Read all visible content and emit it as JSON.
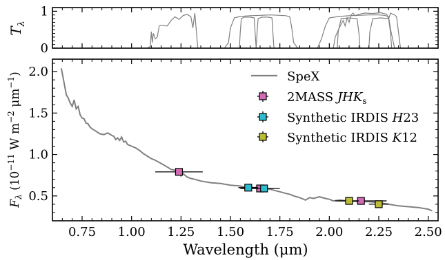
{
  "chart_data": [
    {
      "type": "line",
      "panel": "transmission",
      "ylabel": "T",
      "ylabel_sub": "λ",
      "xlim": [
        0.6,
        2.55
      ],
      "ylim": [
        0,
        1.1
      ],
      "yticks": [
        0,
        1
      ],
      "series": [
        {
          "color": "#808080",
          "x": [
            1.08,
            1.095,
            1.1,
            1.105,
            1.11,
            1.12,
            1.13,
            1.14,
            1.15,
            1.18,
            1.2,
            1.22,
            1.24,
            1.26,
            1.28,
            1.3,
            1.31,
            1.32,
            1.33,
            1.335
          ],
          "y": [
            0.0,
            0.05,
            0.45,
            0.15,
            0.4,
            0.25,
            0.3,
            0.6,
            0.62,
            0.6,
            0.75,
            0.85,
            0.78,
            0.88,
            0.92,
            0.85,
            0.55,
            0.95,
            0.3,
            0.0
          ]
        },
        {
          "color": "#808080",
          "x": [
            1.47,
            1.49,
            1.5,
            1.52,
            1.55,
            1.6,
            1.65,
            1.7,
            1.75,
            1.78,
            1.8,
            1.81,
            1.82,
            1.84
          ],
          "y": [
            0.0,
            0.15,
            0.55,
            0.82,
            0.86,
            0.88,
            0.89,
            0.9,
            0.89,
            0.88,
            0.85,
            0.55,
            0.15,
            0.0
          ]
        },
        {
          "color": "#808080",
          "x": [
            1.545,
            1.55,
            1.555,
            1.57,
            1.6,
            1.62,
            1.625,
            1.63
          ],
          "y": [
            0.0,
            0.45,
            0.8,
            0.84,
            0.84,
            0.82,
            0.4,
            0.0
          ]
        },
        {
          "color": "#808080",
          "x": [
            1.63,
            1.635,
            1.64,
            1.66,
            1.69,
            1.71,
            1.715,
            1.72
          ],
          "y": [
            0.0,
            0.45,
            0.8,
            0.84,
            0.84,
            0.82,
            0.4,
            0.0
          ]
        },
        {
          "color": "#808080",
          "x": [
            1.94,
            1.96,
            1.98,
            2.0,
            2.05,
            2.1,
            2.15,
            2.2,
            2.25,
            2.28,
            2.3,
            2.31,
            2.33
          ],
          "y": [
            0.0,
            0.25,
            0.6,
            0.82,
            0.86,
            0.88,
            0.89,
            0.9,
            0.9,
            0.89,
            0.85,
            0.5,
            0.0
          ]
        },
        {
          "color": "#808080",
          "x": [
            2.02,
            2.03,
            2.05,
            2.07,
            2.08,
            2.09,
            2.1,
            2.11,
            2.12,
            2.13,
            2.15,
            2.18,
            2.22,
            2.26,
            2.29,
            2.3,
            2.31,
            2.32,
            2.33,
            2.34,
            2.36
          ],
          "y": [
            0.0,
            0.3,
            0.55,
            0.75,
            0.6,
            0.82,
            0.7,
            0.9,
            0.95,
            0.88,
            0.92,
            0.95,
            0.94,
            0.96,
            0.92,
            0.8,
            0.95,
            0.92,
            0.9,
            0.85,
            0.0
          ]
        },
        {
          "color": "#808080",
          "x": [
            2.04,
            2.045,
            2.06,
            2.1,
            2.14,
            2.15,
            2.155
          ],
          "y": [
            0.0,
            0.45,
            0.8,
            0.82,
            0.8,
            0.4,
            0.0
          ]
        },
        {
          "color": "#808080",
          "x": [
            2.2,
            2.205,
            2.22,
            2.26,
            2.3,
            2.31,
            2.315
          ],
          "y": [
            0.0,
            0.45,
            0.8,
            0.82,
            0.8,
            0.4,
            0.0
          ]
        }
      ]
    },
    {
      "type": "scatter",
      "panel": "spectrum",
      "xlabel": "Wavelength (μm)",
      "ylabel": "F",
      "ylabel_sub": "λ",
      "ylabel_rest": " (10",
      "ylabel_exp1": "−11",
      "ylabel_mid": " W m",
      "ylabel_exp2": "−2",
      "ylabel_mid2": " μm",
      "ylabel_exp3": "−1",
      "ylabel_end": ")",
      "xlim": [
        0.6,
        2.55
      ],
      "ylim": [
        0.2,
        2.15
      ],
      "xticks": [
        0.75,
        1.0,
        1.25,
        1.5,
        1.75,
        2.0,
        2.25,
        2.5
      ],
      "xtick_labels": [
        "0.75",
        "1.00",
        "1.25",
        "1.50",
        "1.75",
        "2.00",
        "2.25",
        "2.50"
      ],
      "yticks": [
        0.5,
        1.0,
        1.5,
        2.0
      ],
      "ytick_labels": [
        "0.5",
        "1.0",
        "1.5",
        "2.0"
      ],
      "legend_position": "upper-right",
      "line": {
        "name": "SpeX",
        "color": "#808080",
        "x": [
          0.645,
          0.66,
          0.67,
          0.68,
          0.69,
          0.7,
          0.71,
          0.72,
          0.73,
          0.74,
          0.75,
          0.76,
          0.77,
          0.78,
          0.79,
          0.8,
          0.82,
          0.84,
          0.86,
          0.88,
          0.9,
          0.91,
          0.92,
          0.93,
          0.94,
          0.95,
          0.96,
          0.97,
          0.98,
          1.0,
          1.02,
          1.04,
          1.06,
          1.08,
          1.1,
          1.12,
          1.15,
          1.18,
          1.2,
          1.22,
          1.24,
          1.25,
          1.26,
          1.28,
          1.3,
          1.32,
          1.35,
          1.4,
          1.45,
          1.5,
          1.55,
          1.58,
          1.6,
          1.62,
          1.65,
          1.68,
          1.7,
          1.75,
          1.78,
          1.8,
          1.82,
          1.85,
          1.88,
          1.9,
          1.92,
          1.95,
          1.98,
          2.0,
          2.02,
          2.05,
          2.1,
          2.15,
          2.2,
          2.25,
          2.3,
          2.35,
          2.4,
          2.45,
          2.5,
          2.52
        ],
        "y": [
          2.04,
          1.85,
          1.72,
          1.68,
          1.62,
          1.58,
          1.66,
          1.55,
          1.58,
          1.48,
          1.44,
          1.43,
          1.38,
          1.37,
          1.33,
          1.31,
          1.28,
          1.25,
          1.24,
          1.26,
          1.23,
          1.22,
          1.18,
          1.2,
          1.17,
          1.21,
          1.15,
          1.16,
          1.12,
          1.1,
          1.08,
          1.05,
          1.01,
          0.98,
          0.95,
          0.93,
          0.89,
          0.85,
          0.82,
          0.81,
          0.78,
          0.74,
          0.77,
          0.73,
          0.71,
          0.7,
          0.68,
          0.66,
          0.65,
          0.63,
          0.62,
          0.6,
          0.61,
          0.6,
          0.61,
          0.59,
          0.58,
          0.55,
          0.53,
          0.52,
          0.5,
          0.48,
          0.45,
          0.48,
          0.47,
          0.49,
          0.47,
          0.46,
          0.44,
          0.45,
          0.44,
          0.43,
          0.43,
          0.42,
          0.4,
          0.38,
          0.37,
          0.36,
          0.34,
          0.32
        ]
      },
      "series": [
        {
          "name": "2MASS JHKs",
          "label_main": "2MASS ",
          "label_italic": "JHK",
          "label_sub": "s",
          "color": "#d36ab5",
          "points": [
            {
              "x": 1.24,
              "y": 0.79,
              "xerr": 0.12,
              "yerr": 0.02
            },
            {
              "x": 1.65,
              "y": 0.59,
              "xerr": 0.1,
              "yerr": 0.02
            },
            {
              "x": 2.16,
              "y": 0.44,
              "xerr": 0.13,
              "yerr": 0.02
            }
          ]
        },
        {
          "name": "Synthetic IRDIS H23",
          "label_main": "Synthetic IRDIS ",
          "label_italic": "H",
          "label_sub": "",
          "label_tail": "23",
          "color": "#2dbdd0",
          "points": [
            {
              "x": 1.59,
              "y": 0.6,
              "xerr": 0.05,
              "yerr": 0.02
            },
            {
              "x": 1.67,
              "y": 0.59,
              "xerr": 0.05,
              "yerr": 0.02
            }
          ]
        },
        {
          "name": "Synthetic IRDIS K12",
          "label_main": "Synthetic IRDIS ",
          "label_italic": "K",
          "label_sub": "",
          "label_tail": "12",
          "color": "#bcbd35",
          "points": [
            {
              "x": 2.1,
              "y": 0.44,
              "xerr": 0.05,
              "yerr": 0.02
            },
            {
              "x": 2.25,
              "y": 0.4,
              "xerr": 0.05,
              "yerr": 0.02
            }
          ]
        }
      ]
    }
  ]
}
